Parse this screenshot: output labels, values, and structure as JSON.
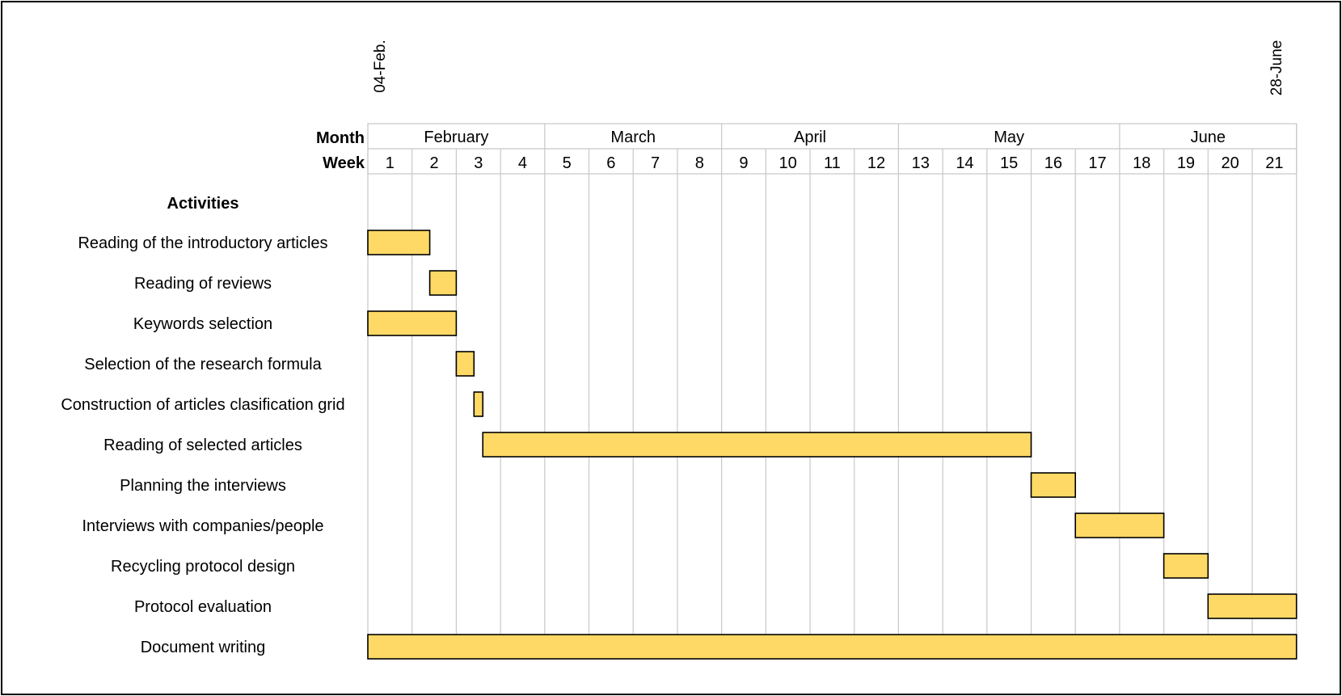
{
  "chart_data": {
    "type": "gantt",
    "start_marker": "04-Feb.",
    "end_marker": "28-June",
    "month_header": "Month",
    "week_header": "Week",
    "activities_header": "Activities",
    "months": [
      {
        "label": "February",
        "start_week": 1,
        "end_week": 4
      },
      {
        "label": "March",
        "start_week": 5,
        "end_week": 8
      },
      {
        "label": "April",
        "start_week": 9,
        "end_week": 12
      },
      {
        "label": "May",
        "start_week": 13,
        "end_week": 17
      },
      {
        "label": "June",
        "start_week": 18,
        "end_week": 21
      }
    ],
    "weeks": [
      "1",
      "2",
      "3",
      "4",
      "5",
      "6",
      "7",
      "8",
      "9",
      "10",
      "11",
      "12",
      "13",
      "14",
      "15",
      "16",
      "17",
      "18",
      "19",
      "20",
      "21"
    ],
    "week_range": [
      1,
      21
    ],
    "bar_color": "#FFD966",
    "tasks": [
      {
        "name": "Reading of the introductory articles",
        "start": 1.0,
        "end": 2.4
      },
      {
        "name": "Reading of reviews",
        "start": 2.4,
        "end": 3.0
      },
      {
        "name": "Keywords selection",
        "start": 1.0,
        "end": 3.0
      },
      {
        "name": "Selection of the research formula",
        "start": 3.0,
        "end": 3.4
      },
      {
        "name": "Construction of articles clasification grid",
        "start": 3.4,
        "end": 3.6
      },
      {
        "name": "Reading of selected articles",
        "start": 3.6,
        "end": 16.0
      },
      {
        "name": "Planning the interviews",
        "start": 16.0,
        "end": 17.0
      },
      {
        "name": "Interviews with companies/people",
        "start": 17.0,
        "end": 19.0
      },
      {
        "name": "Recycling protocol design",
        "start": 19.0,
        "end": 20.0
      },
      {
        "name": "Protocol evaluation",
        "start": 20.0,
        "end": 22.0
      },
      {
        "name": "Document writing",
        "start": 1.0,
        "end": 22.0
      }
    ]
  }
}
